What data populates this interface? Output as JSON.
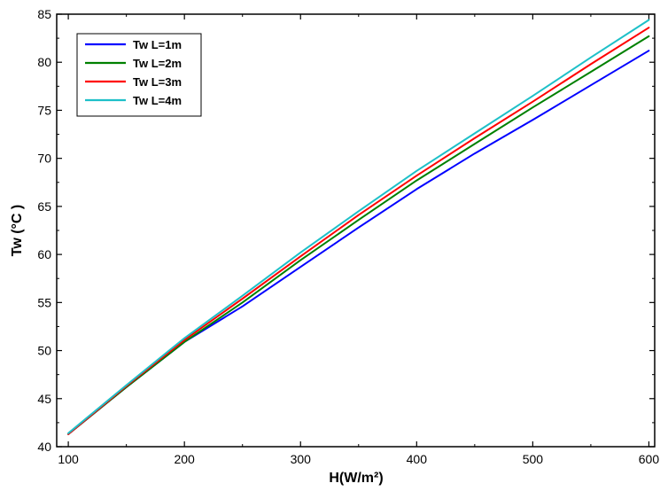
{
  "chart_data": {
    "type": "line",
    "title": "",
    "xlabel": "H(W/m²)",
    "ylabel": "Tw (°C )",
    "xlim": [
      90,
      605
    ],
    "ylim": [
      40,
      85
    ],
    "xticks": [
      100,
      200,
      300,
      400,
      500,
      600
    ],
    "yticks": [
      40,
      45,
      50,
      55,
      60,
      65,
      70,
      75,
      80,
      85
    ],
    "xtick_labels": [
      "100",
      "200",
      "300",
      "400",
      "500",
      "600"
    ],
    "ytick_labels": [
      "40",
      "45",
      "50",
      "55",
      "60",
      "65",
      "70",
      "75",
      "80",
      "85"
    ],
    "grid": false,
    "legend_position": "top-left",
    "x": [
      100,
      150,
      200,
      250,
      300,
      350,
      400,
      450,
      500,
      550,
      600
    ],
    "series": [
      {
        "name": "Tw L=1m",
        "color": "#0000ff",
        "values": [
          41.3,
          46.2,
          50.9,
          54.6,
          58.7,
          62.8,
          66.8,
          70.5,
          74.0,
          77.6,
          81.2
        ]
      },
      {
        "name": "Tw L=2m",
        "color": "#008000",
        "values": [
          41.3,
          46.2,
          50.9,
          55.0,
          59.4,
          63.6,
          67.7,
          71.5,
          75.3,
          79.0,
          82.7
        ]
      },
      {
        "name": "Tw L=3m",
        "color": "#ff0000",
        "values": [
          41.3,
          46.3,
          51.1,
          55.4,
          59.8,
          64.1,
          68.2,
          72.1,
          75.9,
          79.8,
          83.6
        ]
      },
      {
        "name": "Tw L=4m",
        "color": "#1ec0c8",
        "values": [
          41.4,
          46.4,
          51.3,
          55.7,
          60.2,
          64.5,
          68.7,
          72.6,
          76.5,
          80.5,
          84.4
        ]
      }
    ]
  }
}
